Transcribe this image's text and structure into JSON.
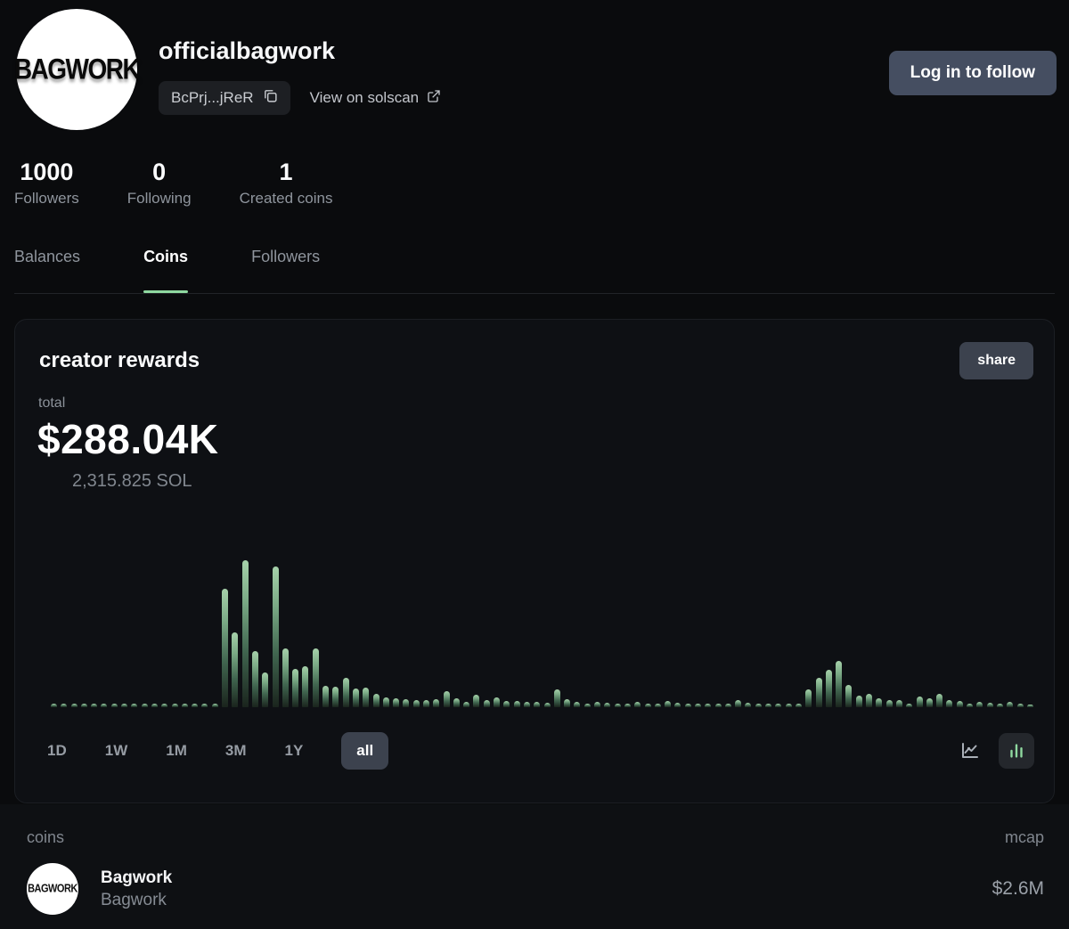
{
  "profile": {
    "username": "officialbagwork",
    "avatar_text": "BAGWORK",
    "address_short": "BcPrj...jReR",
    "solscan_label": "View on solscan",
    "follow_button_label": "Log in to follow",
    "stats": [
      {
        "value": "1000",
        "label": "Followers"
      },
      {
        "value": "0",
        "label": "Following"
      },
      {
        "value": "1",
        "label": "Created coins"
      }
    ]
  },
  "tabs": [
    {
      "label": "Balances"
    },
    {
      "label": "Coins"
    },
    {
      "label": "Followers"
    }
  ],
  "rewards_card": {
    "title": "creator rewards",
    "share_button_label": "share",
    "total_label": "total",
    "total_usd": "$288.04K",
    "total_sol": "2,315.825 SOL",
    "ranges": [
      "1D",
      "1W",
      "1M",
      "3M",
      "1Y",
      "all"
    ],
    "active_range": "all",
    "accent_green": "#8fd9a0"
  },
  "chart_data": {
    "type": "bar",
    "title": "creator rewards over time (all)",
    "ylim": [
      0,
      165
    ],
    "bar_gradient_top": "#a6d1aa",
    "bar_gradient_bottom": "#1a241d",
    "values": [
      4,
      4,
      4,
      4,
      4,
      4,
      4,
      4,
      4,
      4,
      4,
      4,
      4,
      4,
      4,
      4,
      4,
      133,
      84,
      165,
      63,
      39,
      158,
      66,
      43,
      46,
      66,
      24,
      23,
      33,
      21,
      22,
      15,
      11,
      10,
      9,
      8,
      8,
      9,
      18,
      10,
      6,
      14,
      8,
      11,
      7,
      7,
      6,
      6,
      5,
      20,
      9,
      6,
      4,
      6,
      5,
      4,
      4,
      6,
      4,
      4,
      7,
      5,
      4,
      4,
      4,
      4,
      4,
      8,
      5,
      4,
      4,
      4,
      4,
      4,
      20,
      33,
      42,
      52,
      25,
      13,
      15,
      10,
      8,
      8,
      4,
      12,
      10,
      15,
      8,
      7,
      4,
      6,
      5,
      4,
      6,
      4,
      3
    ]
  },
  "coins_section": {
    "header_left": "coins",
    "header_right": "mcap",
    "rows": [
      {
        "name": "Bagwork",
        "subtitle": "Bagwork",
        "avatar_text": "BAGWORK",
        "mcap": "$2.6M"
      }
    ]
  }
}
